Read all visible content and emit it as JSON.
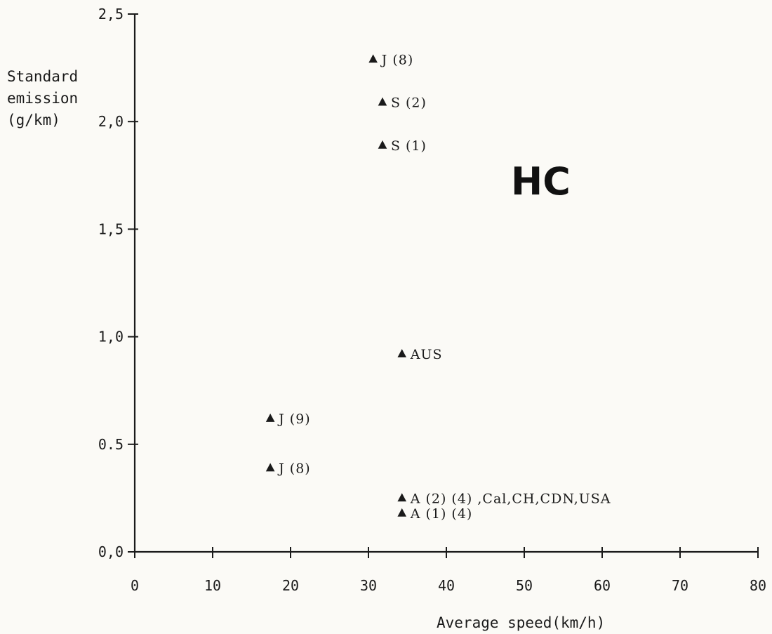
{
  "chart_data": {
    "type": "scatter",
    "title": "",
    "annotation": "HC",
    "xlabel": "Average speed(km/h)",
    "ylabel": [
      "Standard",
      "emission",
      "(g/km)"
    ],
    "xlim": [
      0,
      80
    ],
    "ylim": [
      0,
      2.5
    ],
    "x_ticks": [
      0,
      10,
      20,
      30,
      40,
      50,
      60,
      70,
      80
    ],
    "x_tick_labels": [
      "0",
      "10",
      "20",
      "30",
      "40",
      "50",
      "60",
      "70",
      "80"
    ],
    "y_ticks": [
      0,
      0.5,
      1.0,
      1.5,
      2.0,
      2.5
    ],
    "y_tick_labels": [
      "0,0",
      "0.5",
      "1,0",
      "1,5",
      "2,0",
      "2,5"
    ],
    "grid": false,
    "marker": "triangle",
    "points": [
      {
        "x": 30.6,
        "y": 2.29,
        "label": "J (8)"
      },
      {
        "x": 31.8,
        "y": 2.09,
        "label": "S (2)"
      },
      {
        "x": 31.8,
        "y": 1.89,
        "label": "S (1)"
      },
      {
        "x": 34.3,
        "y": 0.92,
        "label": "AUS"
      },
      {
        "x": 17.4,
        "y": 0.62,
        "label": "J (9)"
      },
      {
        "x": 17.4,
        "y": 0.39,
        "label": "J (8)"
      },
      {
        "x": 34.3,
        "y": 0.25,
        "label": "A (2) (4) ,Cal,CH,CDN,USA"
      },
      {
        "x": 34.3,
        "y": 0.18,
        "label": "A (1) (4)"
      }
    ]
  }
}
